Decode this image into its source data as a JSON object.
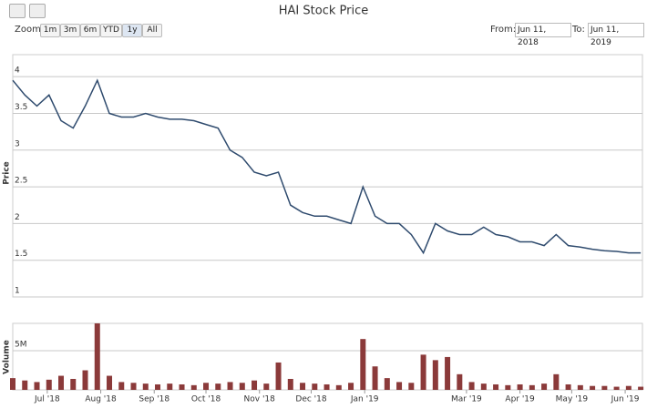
{
  "ui": {
    "zoom_label": "Zoom",
    "zoom_buttons": [
      "1m",
      "3m",
      "6m",
      "YTD",
      "1y",
      "All"
    ],
    "from_label": "From:",
    "from_date": "Jun 11, 2018",
    "to_label": "To:",
    "to_date": "Jun 11, 2019"
  },
  "chart_data": [
    {
      "type": "line",
      "title": "HAI Stock Price",
      "y_label": "Price",
      "color": "#2f4b6e",
      "grid": true,
      "x": [
        "2018-06-11",
        "2018-06-18",
        "2018-06-25",
        "2018-07-02",
        "2018-07-09",
        "2018-07-16",
        "2018-07-23",
        "2018-07-30",
        "2018-08-06",
        "2018-08-13",
        "2018-08-20",
        "2018-08-27",
        "2018-09-03",
        "2018-09-10",
        "2018-09-17",
        "2018-09-24",
        "2018-10-01",
        "2018-10-08",
        "2018-10-15",
        "2018-10-22",
        "2018-10-29",
        "2018-11-05",
        "2018-11-12",
        "2018-11-19",
        "2018-11-26",
        "2018-12-03",
        "2018-12-10",
        "2018-12-17",
        "2018-12-24",
        "2018-12-31",
        "2019-01-07",
        "2019-01-14",
        "2019-01-21",
        "2019-01-28",
        "2019-02-04",
        "2019-02-11",
        "2019-02-18",
        "2019-02-25",
        "2019-03-04",
        "2019-03-11",
        "2019-03-18",
        "2019-03-25",
        "2019-04-01",
        "2019-04-08",
        "2019-04-15",
        "2019-04-22",
        "2019-04-29",
        "2019-05-06",
        "2019-05-13",
        "2019-05-20",
        "2019-05-27",
        "2019-06-03",
        "2019-06-10"
      ],
      "values": [
        3.95,
        3.75,
        3.6,
        3.75,
        3.4,
        3.3,
        3.6,
        3.95,
        3.5,
        3.45,
        3.45,
        3.5,
        3.45,
        3.42,
        3.42,
        3.4,
        3.35,
        3.3,
        3.0,
        2.9,
        2.7,
        2.65,
        2.7,
        2.25,
        2.15,
        2.1,
        2.1,
        2.05,
        2.0,
        2.5,
        2.1,
        2.0,
        2.0,
        1.85,
        1.6,
        2.0,
        1.9,
        1.85,
        1.85,
        1.95,
        1.85,
        1.82,
        1.75,
        1.75,
        1.7,
        1.85,
        1.7,
        1.68,
        1.65,
        1.63,
        1.62,
        1.6,
        1.6
      ],
      "xlim": [
        "2018-06-11",
        "2019-06-11"
      ],
      "ylim": [
        1,
        4.3
      ],
      "yticks": [
        1,
        1.5,
        2,
        2.5,
        3,
        3.5,
        4
      ]
    },
    {
      "type": "bar",
      "y_label": "Volume",
      "color": "#8b3a3a",
      "x": [
        "2018-06-11",
        "2018-06-18",
        "2018-06-25",
        "2018-07-02",
        "2018-07-09",
        "2018-07-16",
        "2018-07-23",
        "2018-07-30",
        "2018-08-06",
        "2018-08-13",
        "2018-08-20",
        "2018-08-27",
        "2018-09-03",
        "2018-09-10",
        "2018-09-17",
        "2018-09-24",
        "2018-10-01",
        "2018-10-08",
        "2018-10-15",
        "2018-10-22",
        "2018-10-29",
        "2018-11-05",
        "2018-11-12",
        "2018-11-19",
        "2018-11-26",
        "2018-12-03",
        "2018-12-10",
        "2018-12-17",
        "2018-12-24",
        "2018-12-31",
        "2019-01-07",
        "2019-01-14",
        "2019-01-21",
        "2019-01-28",
        "2019-02-04",
        "2019-02-11",
        "2019-02-18",
        "2019-02-25",
        "2019-03-04",
        "2019-03-11",
        "2019-03-18",
        "2019-03-25",
        "2019-04-01",
        "2019-04-08",
        "2019-04-15",
        "2019-04-22",
        "2019-04-29",
        "2019-05-06",
        "2019-05-13",
        "2019-05-20",
        "2019-05-27",
        "2019-06-03",
        "2019-06-10"
      ],
      "values": [
        1500000,
        1200000,
        1000000,
        1300000,
        1800000,
        1400000,
        2500000,
        8500000,
        1800000,
        1000000,
        900000,
        800000,
        700000,
        800000,
        700000,
        600000,
        900000,
        800000,
        1000000,
        900000,
        1200000,
        800000,
        3500000,
        1400000,
        900000,
        800000,
        700000,
        600000,
        900000,
        6500000,
        3000000,
        1500000,
        1000000,
        900000,
        4500000,
        3800000,
        4200000,
        2000000,
        1000000,
        800000,
        700000,
        600000,
        700000,
        600000,
        800000,
        2000000,
        700000,
        600000,
        500000,
        500000,
        400000,
        500000,
        400000
      ],
      "xlim": [
        "2018-06-11",
        "2019-06-11"
      ],
      "ylim": [
        0,
        8500000
      ],
      "yticks": [
        {
          "value": 5000000,
          "label": "5M"
        }
      ],
      "xticks": [
        {
          "value": "2018-07-01",
          "label": "Jul '18"
        },
        {
          "value": "2018-08-01",
          "label": "Aug '18"
        },
        {
          "value": "2018-09-01",
          "label": "Sep '18"
        },
        {
          "value": "2018-10-01",
          "label": "Oct '18"
        },
        {
          "value": "2018-11-01",
          "label": "Nov '18"
        },
        {
          "value": "2018-12-01",
          "label": "Dec '18"
        },
        {
          "value": "2019-01-01",
          "label": "Jan '19"
        },
        {
          "value": "2019-03-01",
          "label": "Mar '19"
        },
        {
          "value": "2019-04-01",
          "label": "Apr '19"
        },
        {
          "value": "2019-05-01",
          "label": "May '19"
        },
        {
          "value": "2019-06-01",
          "label": "Jun '19"
        }
      ]
    }
  ]
}
